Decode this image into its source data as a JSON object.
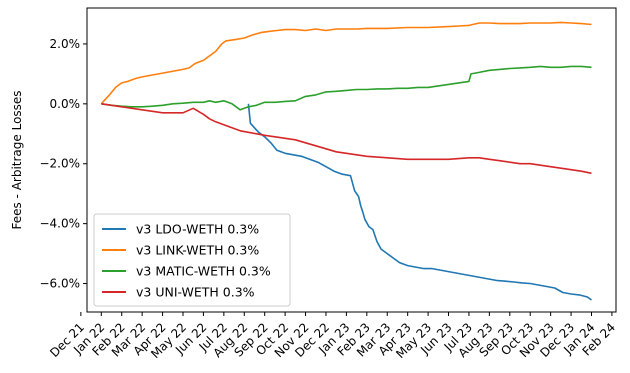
{
  "chart_data": {
    "type": "line",
    "title": "",
    "xlabel": "",
    "ylabel": "Fees - Arbitrage Losses",
    "x_ticks": [
      "Dec 21",
      "Jan 22",
      "Feb 22",
      "Mar 22",
      "Apr 22",
      "May 22",
      "Jun 22",
      "Jul 22",
      "Aug 22",
      "Sep 22",
      "Oct 22",
      "Nov 22",
      "Dec 22",
      "Jan 23",
      "Feb 23",
      "Mar 23",
      "Apr 23",
      "May 23",
      "Jun 23",
      "Jul 23",
      "Aug 23",
      "Sep 23",
      "Oct 23",
      "Nov 23",
      "Dec 23",
      "Jan 24",
      "Feb 24"
    ],
    "y_ticks": [
      "−6.0%",
      "−4.0%",
      "−2.0%",
      "0.0%",
      "2.0%"
    ],
    "y_tick_values": [
      -6.0,
      -4.0,
      -2.0,
      0.0,
      2.0
    ],
    "ylim": [
      -6.95,
      3.2
    ],
    "xlim_month_index": [
      0.3,
      26.2
    ],
    "grid": false,
    "legend_position": "lower-left",
    "colors": {
      "ldo": "#1f77b4",
      "link": "#ff7f0e",
      "matic": "#2ca02c",
      "uni": "#d62728"
    },
    "series": [
      {
        "name": "v3 LDO-WETH 0.3%",
        "color": "#1f77b4",
        "x": [
          8.2,
          8.3,
          8.5,
          8.7,
          9.0,
          9.3,
          9.6,
          10.0,
          10.4,
          10.8,
          11.2,
          11.6,
          12.0,
          12.4,
          12.8,
          13.2,
          13.4,
          13.6,
          13.7,
          13.8,
          13.9,
          14.1,
          14.3,
          14.5,
          14.7,
          15.0,
          15.3,
          15.6,
          16.0,
          16.4,
          16.8,
          17.2,
          17.6,
          18.0,
          18.4,
          18.8,
          19.2,
          19.6,
          20.0,
          20.4,
          20.8,
          21.2,
          21.6,
          22.0,
          22.4,
          22.8,
          23.2,
          23.6,
          24.0,
          24.4,
          24.8,
          25.0
        ],
        "y": [
          0.0,
          -0.65,
          -0.8,
          -0.95,
          -1.1,
          -1.3,
          -1.55,
          -1.65,
          -1.7,
          -1.75,
          -1.85,
          -1.95,
          -2.1,
          -2.25,
          -2.35,
          -2.4,
          -2.9,
          -3.1,
          -3.4,
          -3.6,
          -3.85,
          -4.1,
          -4.2,
          -4.6,
          -4.85,
          -5.0,
          -5.15,
          -5.3,
          -5.4,
          -5.45,
          -5.5,
          -5.5,
          -5.55,
          -5.6,
          -5.65,
          -5.7,
          -5.75,
          -5.8,
          -5.85,
          -5.9,
          -5.92,
          -5.95,
          -5.98,
          -6.0,
          -6.05,
          -6.1,
          -6.15,
          -6.3,
          -6.35,
          -6.38,
          -6.45,
          -6.55
        ]
      },
      {
        "name": "v3 LINK-WETH 0.3%",
        "color": "#ff7f0e",
        "x": [
          1.0,
          1.2,
          1.4,
          1.7,
          2.0,
          2.3,
          2.7,
          3.0,
          3.4,
          3.8,
          4.2,
          4.6,
          5.0,
          5.3,
          5.6,
          6.0,
          6.3,
          6.6,
          6.9,
          7.1,
          7.3,
          7.6,
          8.0,
          8.4,
          8.8,
          9.2,
          9.6,
          10.0,
          10.5,
          11.0,
          11.5,
          12.0,
          12.5,
          13.0,
          13.5,
          14.0,
          15.0,
          16.0,
          17.0,
          18.0,
          18.5,
          19.0,
          19.5,
          20.0,
          20.5,
          21.0,
          21.5,
          22.0,
          22.5,
          23.0,
          23.5,
          24.0,
          24.5,
          25.0
        ],
        "y": [
          0.0,
          0.15,
          0.3,
          0.55,
          0.7,
          0.75,
          0.85,
          0.9,
          0.95,
          1.0,
          1.05,
          1.1,
          1.15,
          1.2,
          1.35,
          1.45,
          1.6,
          1.75,
          2.0,
          2.1,
          2.12,
          2.15,
          2.2,
          2.3,
          2.38,
          2.42,
          2.45,
          2.48,
          2.48,
          2.45,
          2.5,
          2.45,
          2.5,
          2.5,
          2.5,
          2.52,
          2.52,
          2.55,
          2.55,
          2.58,
          2.6,
          2.62,
          2.7,
          2.7,
          2.68,
          2.68,
          2.68,
          2.7,
          2.7,
          2.7,
          2.72,
          2.7,
          2.68,
          2.65
        ]
      },
      {
        "name": "v3 MATIC-WETH 0.3%",
        "color": "#2ca02c",
        "x": [
          1.0,
          1.5,
          2.0,
          2.5,
          3.0,
          3.5,
          4.0,
          4.5,
          5.0,
          5.5,
          6.0,
          6.3,
          6.6,
          7.0,
          7.4,
          7.8,
          8.2,
          8.6,
          9.0,
          9.5,
          10.0,
          10.5,
          11.0,
          11.5,
          12.0,
          12.5,
          13.0,
          13.5,
          14.0,
          14.5,
          15.0,
          15.5,
          16.0,
          16.5,
          17.0,
          17.5,
          18.0,
          18.5,
          19.0,
          19.1,
          19.5,
          20.0,
          20.5,
          21.0,
          21.5,
          22.0,
          22.5,
          23.0,
          23.5,
          24.0,
          24.5,
          25.0
        ],
        "y": [
          0.0,
          -0.05,
          -0.08,
          -0.1,
          -0.1,
          -0.08,
          -0.05,
          0.0,
          0.02,
          0.05,
          0.05,
          0.1,
          0.05,
          0.1,
          0.0,
          -0.2,
          -0.1,
          -0.05,
          0.05,
          0.05,
          0.08,
          0.1,
          0.25,
          0.3,
          0.4,
          0.42,
          0.45,
          0.48,
          0.48,
          0.5,
          0.5,
          0.52,
          0.52,
          0.55,
          0.55,
          0.6,
          0.65,
          0.7,
          0.75,
          1.0,
          1.05,
          1.12,
          1.15,
          1.18,
          1.2,
          1.22,
          1.25,
          1.22,
          1.22,
          1.25,
          1.25,
          1.22
        ]
      },
      {
        "name": "v3 UNI-WETH 0.3%",
        "color": "#d62728",
        "x": [
          1.0,
          1.5,
          2.0,
          2.5,
          3.0,
          3.5,
          4.0,
          4.5,
          5.0,
          5.5,
          6.0,
          6.3,
          6.6,
          7.0,
          7.4,
          7.8,
          8.2,
          8.6,
          9.0,
          9.5,
          10.0,
          10.5,
          11.0,
          11.5,
          12.0,
          12.5,
          13.0,
          13.5,
          14.0,
          15.0,
          16.0,
          17.0,
          18.0,
          19.0,
          19.5,
          20.0,
          20.5,
          21.0,
          21.5,
          22.0,
          22.5,
          23.0,
          23.5,
          24.0,
          24.5,
          25.0
        ],
        "y": [
          0.0,
          -0.05,
          -0.1,
          -0.15,
          -0.2,
          -0.25,
          -0.3,
          -0.3,
          -0.3,
          -0.15,
          -0.35,
          -0.5,
          -0.6,
          -0.7,
          -0.8,
          -0.9,
          -0.95,
          -1.0,
          -1.05,
          -1.1,
          -1.15,
          -1.2,
          -1.3,
          -1.4,
          -1.5,
          -1.6,
          -1.65,
          -1.7,
          -1.75,
          -1.8,
          -1.85,
          -1.85,
          -1.85,
          -1.8,
          -1.8,
          -1.85,
          -1.9,
          -1.95,
          -2.0,
          -2.0,
          -2.05,
          -2.1,
          -2.15,
          -2.2,
          -2.25,
          -2.32
        ]
      }
    ]
  }
}
